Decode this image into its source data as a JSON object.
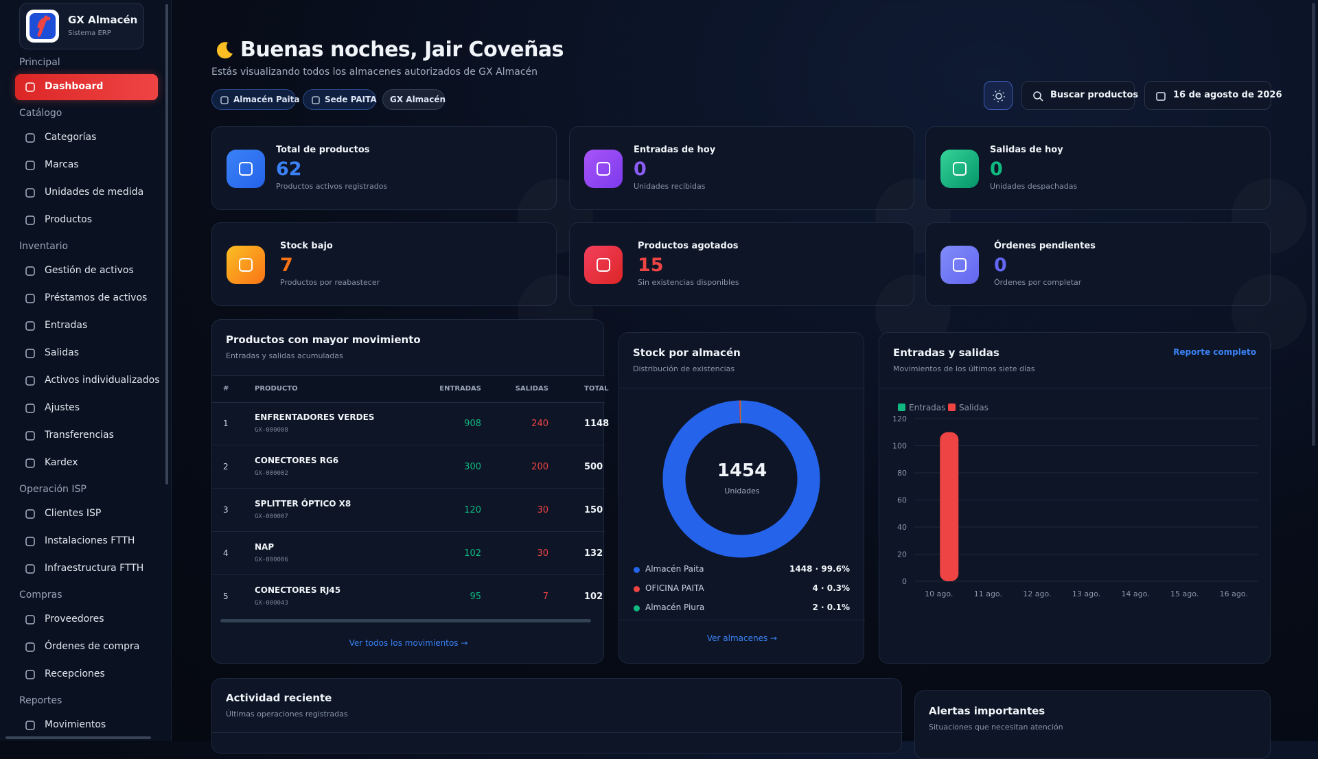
{
  "sidebar": {
    "brand": "GX Almacén",
    "brand_sub": "Sistema ERP",
    "sections": [
      {
        "title": "Principal",
        "items": [
          "Dashboard"
        ]
      },
      {
        "title": "Catálogo",
        "items": [
          "Categorías",
          "Marcas",
          "Unidades de medida",
          "Productos"
        ]
      },
      {
        "title": "Inventario",
        "items": [
          "Gestión de activos",
          "Préstamos de activos",
          "Entradas",
          "Salidas",
          "Activos individualizados",
          "Ajustes",
          "Transferencias",
          "Kardex"
        ]
      },
      {
        "title": "Operación ISP",
        "items": [
          "Clientes ISP",
          "Instalaciones FTTH",
          "Infraestructura FTTH"
        ]
      },
      {
        "title": "Compras",
        "items": [
          "Proveedores",
          "Órdenes de compra",
          "Recepciones"
        ]
      },
      {
        "title": "Reportes",
        "items": [
          "Movimientos"
        ]
      }
    ]
  },
  "header": {
    "greeting": "Buenas noches, Jair Coveñas",
    "subtitle": "Estás visualizando todos los almacenes autorizados de GX Almacén",
    "chips": [
      "Almacén Paita",
      "Sede PAITA",
      "GX Almacén"
    ],
    "search": "Buscar productos",
    "date": "16 de agosto de 2026"
  },
  "stats": [
    {
      "title": "Total de productos",
      "value": 62,
      "note": "Productos activos registrados"
    },
    {
      "title": "Entradas de hoy",
      "value": 0,
      "note": "Unidades recibidas"
    },
    {
      "title": "Salidas de hoy",
      "value": 0,
      "note": "Unidades despachadas"
    },
    {
      "title": "Stock bajo",
      "value": 7,
      "note": "Productos por reabastecer"
    },
    {
      "title": "Productos agotados",
      "value": 15,
      "note": "Sin existencias disponibles"
    },
    {
      "title": "Órdenes pendientes",
      "value": 0,
      "note": "Órdenes por completar"
    }
  ],
  "movement": {
    "title": "Productos con mayor movimiento",
    "subtitle": "Entradas y salidas acumuladas",
    "columns": [
      "#",
      "PRODUCTO",
      "ENTRADAS",
      "SALIDAS",
      "TOTAL"
    ],
    "rows": [
      {
        "rank": 1,
        "name": "ENFRENTADORES VERDES",
        "code": "GX-000008",
        "entradas": 908,
        "salidas": 240,
        "total": 1148
      },
      {
        "rank": 2,
        "name": "CONECTORES RG6",
        "code": "GX-000002",
        "entradas": 300,
        "salidas": 200,
        "total": 500
      },
      {
        "rank": 3,
        "name": "SPLITTER ÓPTICO X8",
        "code": "GX-000007",
        "entradas": 120,
        "salidas": 30,
        "total": 150
      },
      {
        "rank": 4,
        "name": "NAP",
        "code": "GX-000006",
        "entradas": 102,
        "salidas": 30,
        "total": 132
      },
      {
        "rank": 5,
        "name": "CONECTORES RJ45",
        "code": "GX-000043",
        "entradas": 95,
        "salidas": 7,
        "total": 102
      }
    ],
    "link": "Ver todos los movimientos →"
  },
  "stock_chart": {
    "type": "donut",
    "title": "Stock por almacén",
    "subtitle": "Distribución de existencias",
    "total": 1454,
    "total_label": "Unidades",
    "categories": [
      "Almacén Paita",
      "OFICINA PAITA",
      "Almacén Piura"
    ],
    "values": [
      1448,
      4,
      2
    ],
    "value_labels": [
      "1448 · 99.6%",
      "4 · 0.3%",
      "2 · 0.1%"
    ],
    "colors": [
      "#2563eb",
      "#ef4444",
      "#10b981"
    ],
    "link": "Ver almacenes →"
  },
  "flow_chart": {
    "type": "bar",
    "title": "Entradas y salidas",
    "subtitle": "Movimientos de los últimos siete días",
    "link": "Reporte completo",
    "categories": [
      "10 ago.",
      "11 ago.",
      "12 ago.",
      "13 ago.",
      "14 ago.",
      "15 ago.",
      "16 ago."
    ],
    "series": [
      {
        "name": "Entradas",
        "color": "#10b981",
        "values": [
          0,
          0,
          0,
          0,
          0,
          0,
          0
        ]
      },
      {
        "name": "Salidas",
        "color": "#ef4444",
        "values": [
          110,
          0,
          0,
          0,
          0,
          0,
          0
        ]
      }
    ],
    "ylim": [
      0,
      120
    ],
    "yticks": [
      0,
      20,
      40,
      60,
      80,
      100,
      120
    ],
    "grid": true
  },
  "activity": {
    "title": "Actividad reciente",
    "subtitle": "Últimas operaciones registradas"
  },
  "alerts": {
    "title": "Alertas importantes",
    "subtitle": "Situaciones que necesitan atención"
  }
}
